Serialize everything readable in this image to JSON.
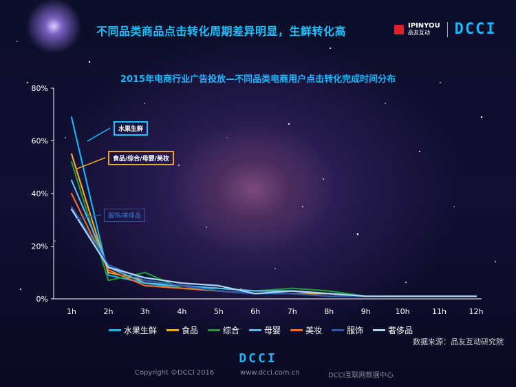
{
  "header": {
    "title": "不同品类商品点击转化周期差异明显，生鲜转化高"
  },
  "brand": {
    "logo_text": "IPINYOU",
    "logo_sub": "品友互动",
    "dcci": "DCCI"
  },
  "chart_data": {
    "type": "line",
    "title": "2015年电商行业广告投放—不同品类电商用户点击转化完成时间分布",
    "xlabel": "",
    "ylabel": "",
    "categories": [
      "1h",
      "2h",
      "3h",
      "4h",
      "5h",
      "6h",
      "7h",
      "8h",
      "9h",
      "10h",
      "11h",
      "12h"
    ],
    "ylim": [
      0,
      80
    ],
    "yticks": [
      "0%",
      "20%",
      "40%",
      "60%",
      "80%"
    ],
    "grid": false,
    "legend_position": "bottom",
    "series": [
      {
        "name": "水果生鲜",
        "color": "#19b4f0",
        "values": [
          69,
          9,
          6,
          4,
          3,
          2,
          2,
          2,
          1,
          1,
          1,
          1
        ]
      },
      {
        "name": "食品",
        "color": "#f5a623",
        "values": [
          55,
          10,
          7,
          5,
          3,
          2,
          2,
          2,
          1,
          1,
          1,
          1
        ]
      },
      {
        "name": "综合",
        "color": "#1f9a3a",
        "values": [
          52,
          7,
          10,
          4,
          4,
          3,
          4,
          3,
          1,
          1,
          1,
          1
        ]
      },
      {
        "name": "母婴",
        "color": "#5ab8ea",
        "values": [
          45,
          12,
          6,
          5,
          4,
          3,
          3,
          2,
          1,
          1,
          1,
          1
        ]
      },
      {
        "name": "美妆",
        "color": "#e8702a",
        "values": [
          40,
          11,
          5,
          4,
          3,
          2,
          2,
          1,
          1,
          1,
          1,
          1
        ]
      },
      {
        "name": "服饰",
        "color": "#2a5ab0",
        "values": [
          35,
          13,
          7,
          5,
          3,
          2,
          2,
          1,
          1,
          1,
          1,
          1
        ]
      },
      {
        "name": "奢侈品",
        "color": "#a8d8f5",
        "values": [
          34,
          12,
          8,
          6,
          5,
          2,
          3,
          2,
          1,
          1,
          1,
          1
        ]
      }
    ],
    "annotations": [
      "水果生鲜",
      "食品/综合/母婴/美妆",
      "服饰/奢侈品"
    ]
  },
  "source": "数据来源：品友互动研究院",
  "footer": {
    "dcci": "DCCI",
    "copyright": "Copyright ©DCCI 2016",
    "site": "www.dcci.com.cn",
    "center": "DCCI互联网数据中心"
  }
}
